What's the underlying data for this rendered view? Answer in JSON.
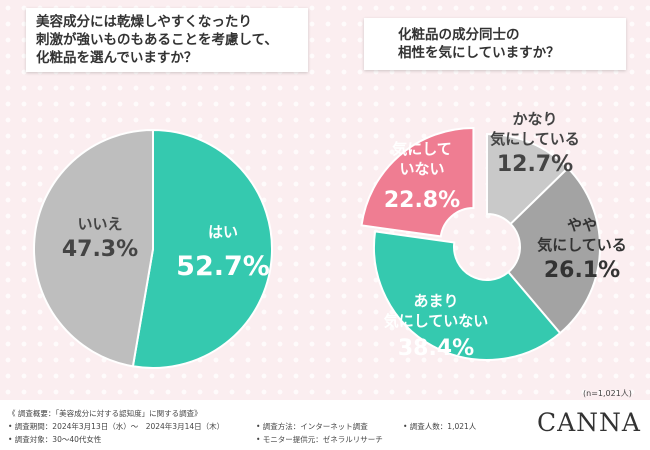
{
  "question1": [
    "美容成分には乾燥しやすくなったり",
    "刺激が強いものもあることを考慮して、",
    "化粧品を選んでいますか？"
  ],
  "question2": [
    "化粧品の成分同士の",
    "相性を気にしていますか？"
  ],
  "chart_data": [
    {
      "type": "pie",
      "title": "美容成分には乾燥しやすくなったり刺激が強いものもあることを考慮して、化粧品を選んでいますか？",
      "slices": [
        {
          "label": [
            "はい"
          ],
          "value": 52.7,
          "display": "52.7%",
          "color": "#35c9af",
          "text_color": "#ffffff"
        },
        {
          "label": [
            "いいえ"
          ],
          "value": 47.3,
          "display": "47.3%",
          "color": "#bebebe",
          "text_color": "#444444"
        }
      ]
    },
    {
      "type": "pie",
      "title": "化粧品の成分同士の相性を気にしていますか？",
      "slices": [
        {
          "label": [
            "かなり",
            "気にしている"
          ],
          "value": 12.7,
          "display": "12.7%",
          "color": "#c9c9c9",
          "text_color": "#444444"
        },
        {
          "label": [
            "やや",
            "気にしている"
          ],
          "value": 26.1,
          "display": "26.1%",
          "color": "#a3a3a3",
          "text_color": "#333333"
        },
        {
          "label": [
            "あまり",
            "気にしていない"
          ],
          "value": 38.4,
          "display": "38.4%",
          "color": "#35c9af",
          "text_color": "#ffffff"
        },
        {
          "label": [
            "気にして",
            "いない"
          ],
          "value": 22.8,
          "display": "22.8%",
          "color": "#ef7d92",
          "text_color": "#ffffff"
        }
      ]
    }
  ],
  "sample_size": "(n=1,021人)",
  "footer": {
    "overview": "《 調査概要：「美容成分に対する認知度」に関する調査》",
    "period": "• 調査期間：2024年3月13日（水）～　2024年3月14日（木）",
    "target": "• 調査対象：30～40代女性",
    "method": "• 調査方法：インターネット調査",
    "provider": "• モニター提供元：ゼネラルリサーチ",
    "respondents": "• 調査人数：1,021人"
  },
  "brand": "CANNA"
}
